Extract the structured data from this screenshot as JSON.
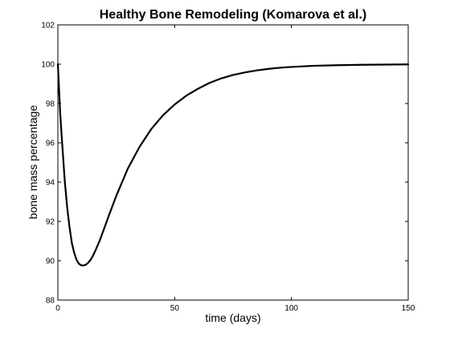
{
  "colors": {
    "background": "#ffffff",
    "axis": "#000000",
    "line": "#000000"
  },
  "chart_data": {
    "type": "line",
    "title": "Healthy Bone Remodeling (Komarova et al.)",
    "xlabel": "time (days)",
    "ylabel": "bone mass percentage",
    "xlim": [
      0,
      150
    ],
    "ylim": [
      88,
      102
    ],
    "xticks": [
      0,
      50,
      100,
      150
    ],
    "yticks": [
      88,
      90,
      92,
      94,
      96,
      98,
      100,
      102
    ],
    "grid": false,
    "legend": "none",
    "series": [
      {
        "x": [
          0,
          1,
          2,
          3,
          4,
          5,
          6,
          7,
          8,
          9,
          10,
          11,
          12,
          13,
          14,
          15,
          16,
          18,
          20,
          22,
          25,
          30,
          35,
          40,
          45,
          50,
          55,
          60,
          65,
          70,
          75,
          80,
          85,
          90,
          95,
          100,
          110,
          120,
          130,
          140,
          150
        ],
        "y": [
          100.0,
          97.5,
          95.7,
          94.0,
          92.7,
          91.7,
          90.9,
          90.4,
          90.05,
          89.85,
          89.77,
          89.76,
          89.8,
          89.9,
          90.05,
          90.25,
          90.5,
          91.05,
          91.7,
          92.35,
          93.3,
          94.7,
          95.8,
          96.7,
          97.4,
          97.95,
          98.4,
          98.75,
          99.05,
          99.28,
          99.45,
          99.58,
          99.68,
          99.76,
          99.82,
          99.86,
          99.92,
          99.95,
          99.97,
          99.98,
          99.99
        ]
      }
    ]
  }
}
